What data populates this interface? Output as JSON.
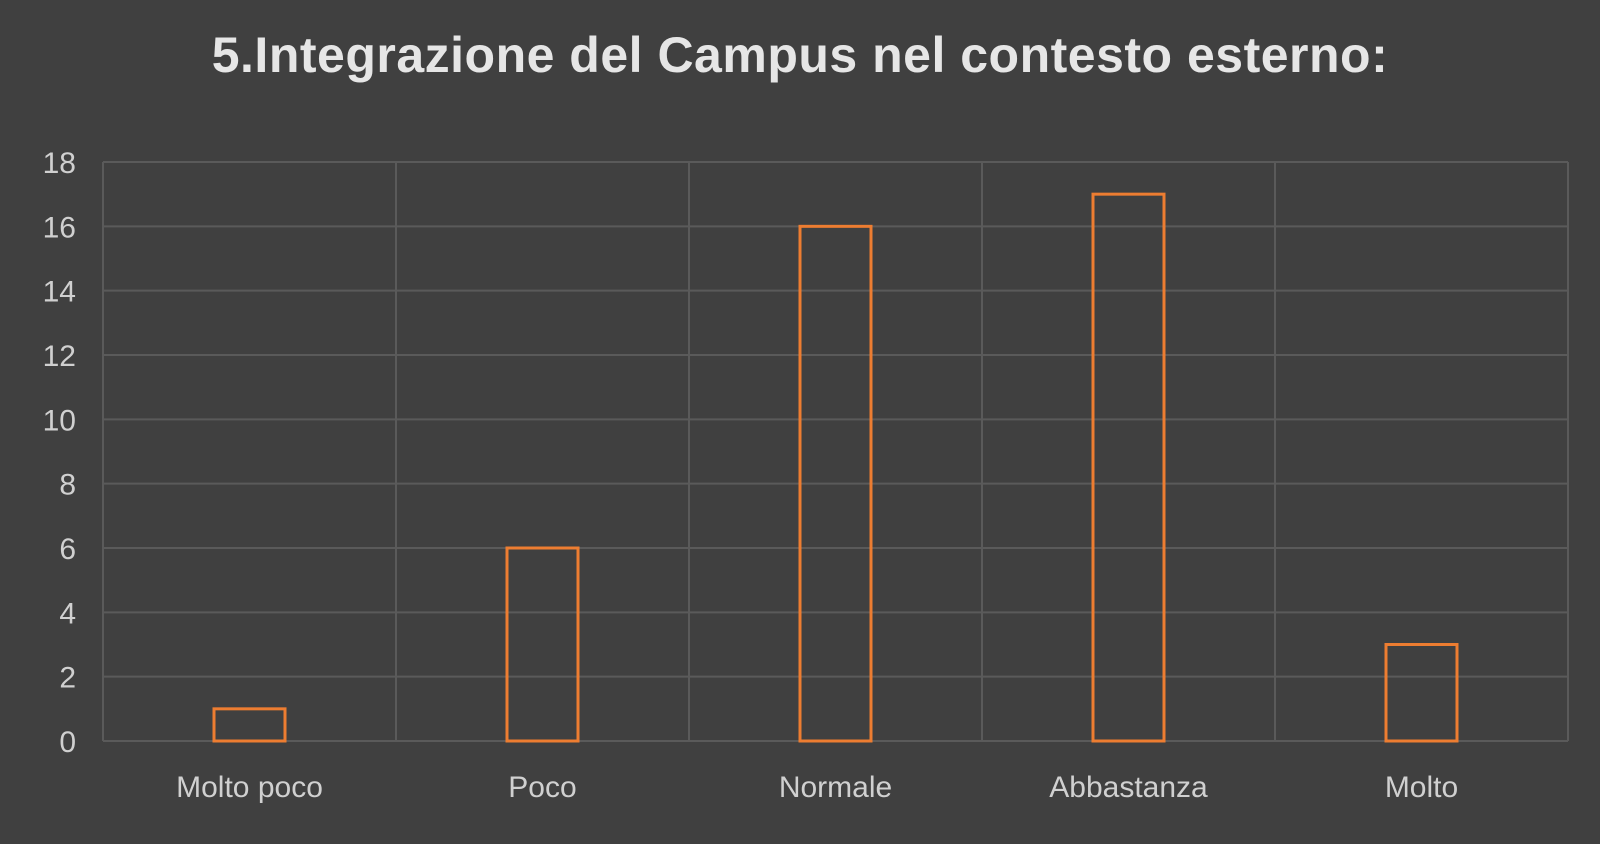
{
  "chart_data": {
    "type": "bar",
    "title": "5.Integrazione del Campus nel contesto esterno:",
    "categories": [
      "Molto poco",
      "Poco",
      "Normale",
      "Abbastanza",
      "Molto"
    ],
    "values": [
      1,
      6,
      16,
      17,
      3
    ],
    "xlabel": "",
    "ylabel": "",
    "ylim": [
      0,
      18
    ],
    "yticks": [
      0,
      2,
      4,
      6,
      8,
      10,
      12,
      14,
      16,
      18
    ],
    "grid": true,
    "legend": "none",
    "colors": {
      "background": "#404040",
      "bar_outline": "#ed7d31",
      "grid": "#5a5a5a",
      "text": "#d0d0d0"
    }
  }
}
